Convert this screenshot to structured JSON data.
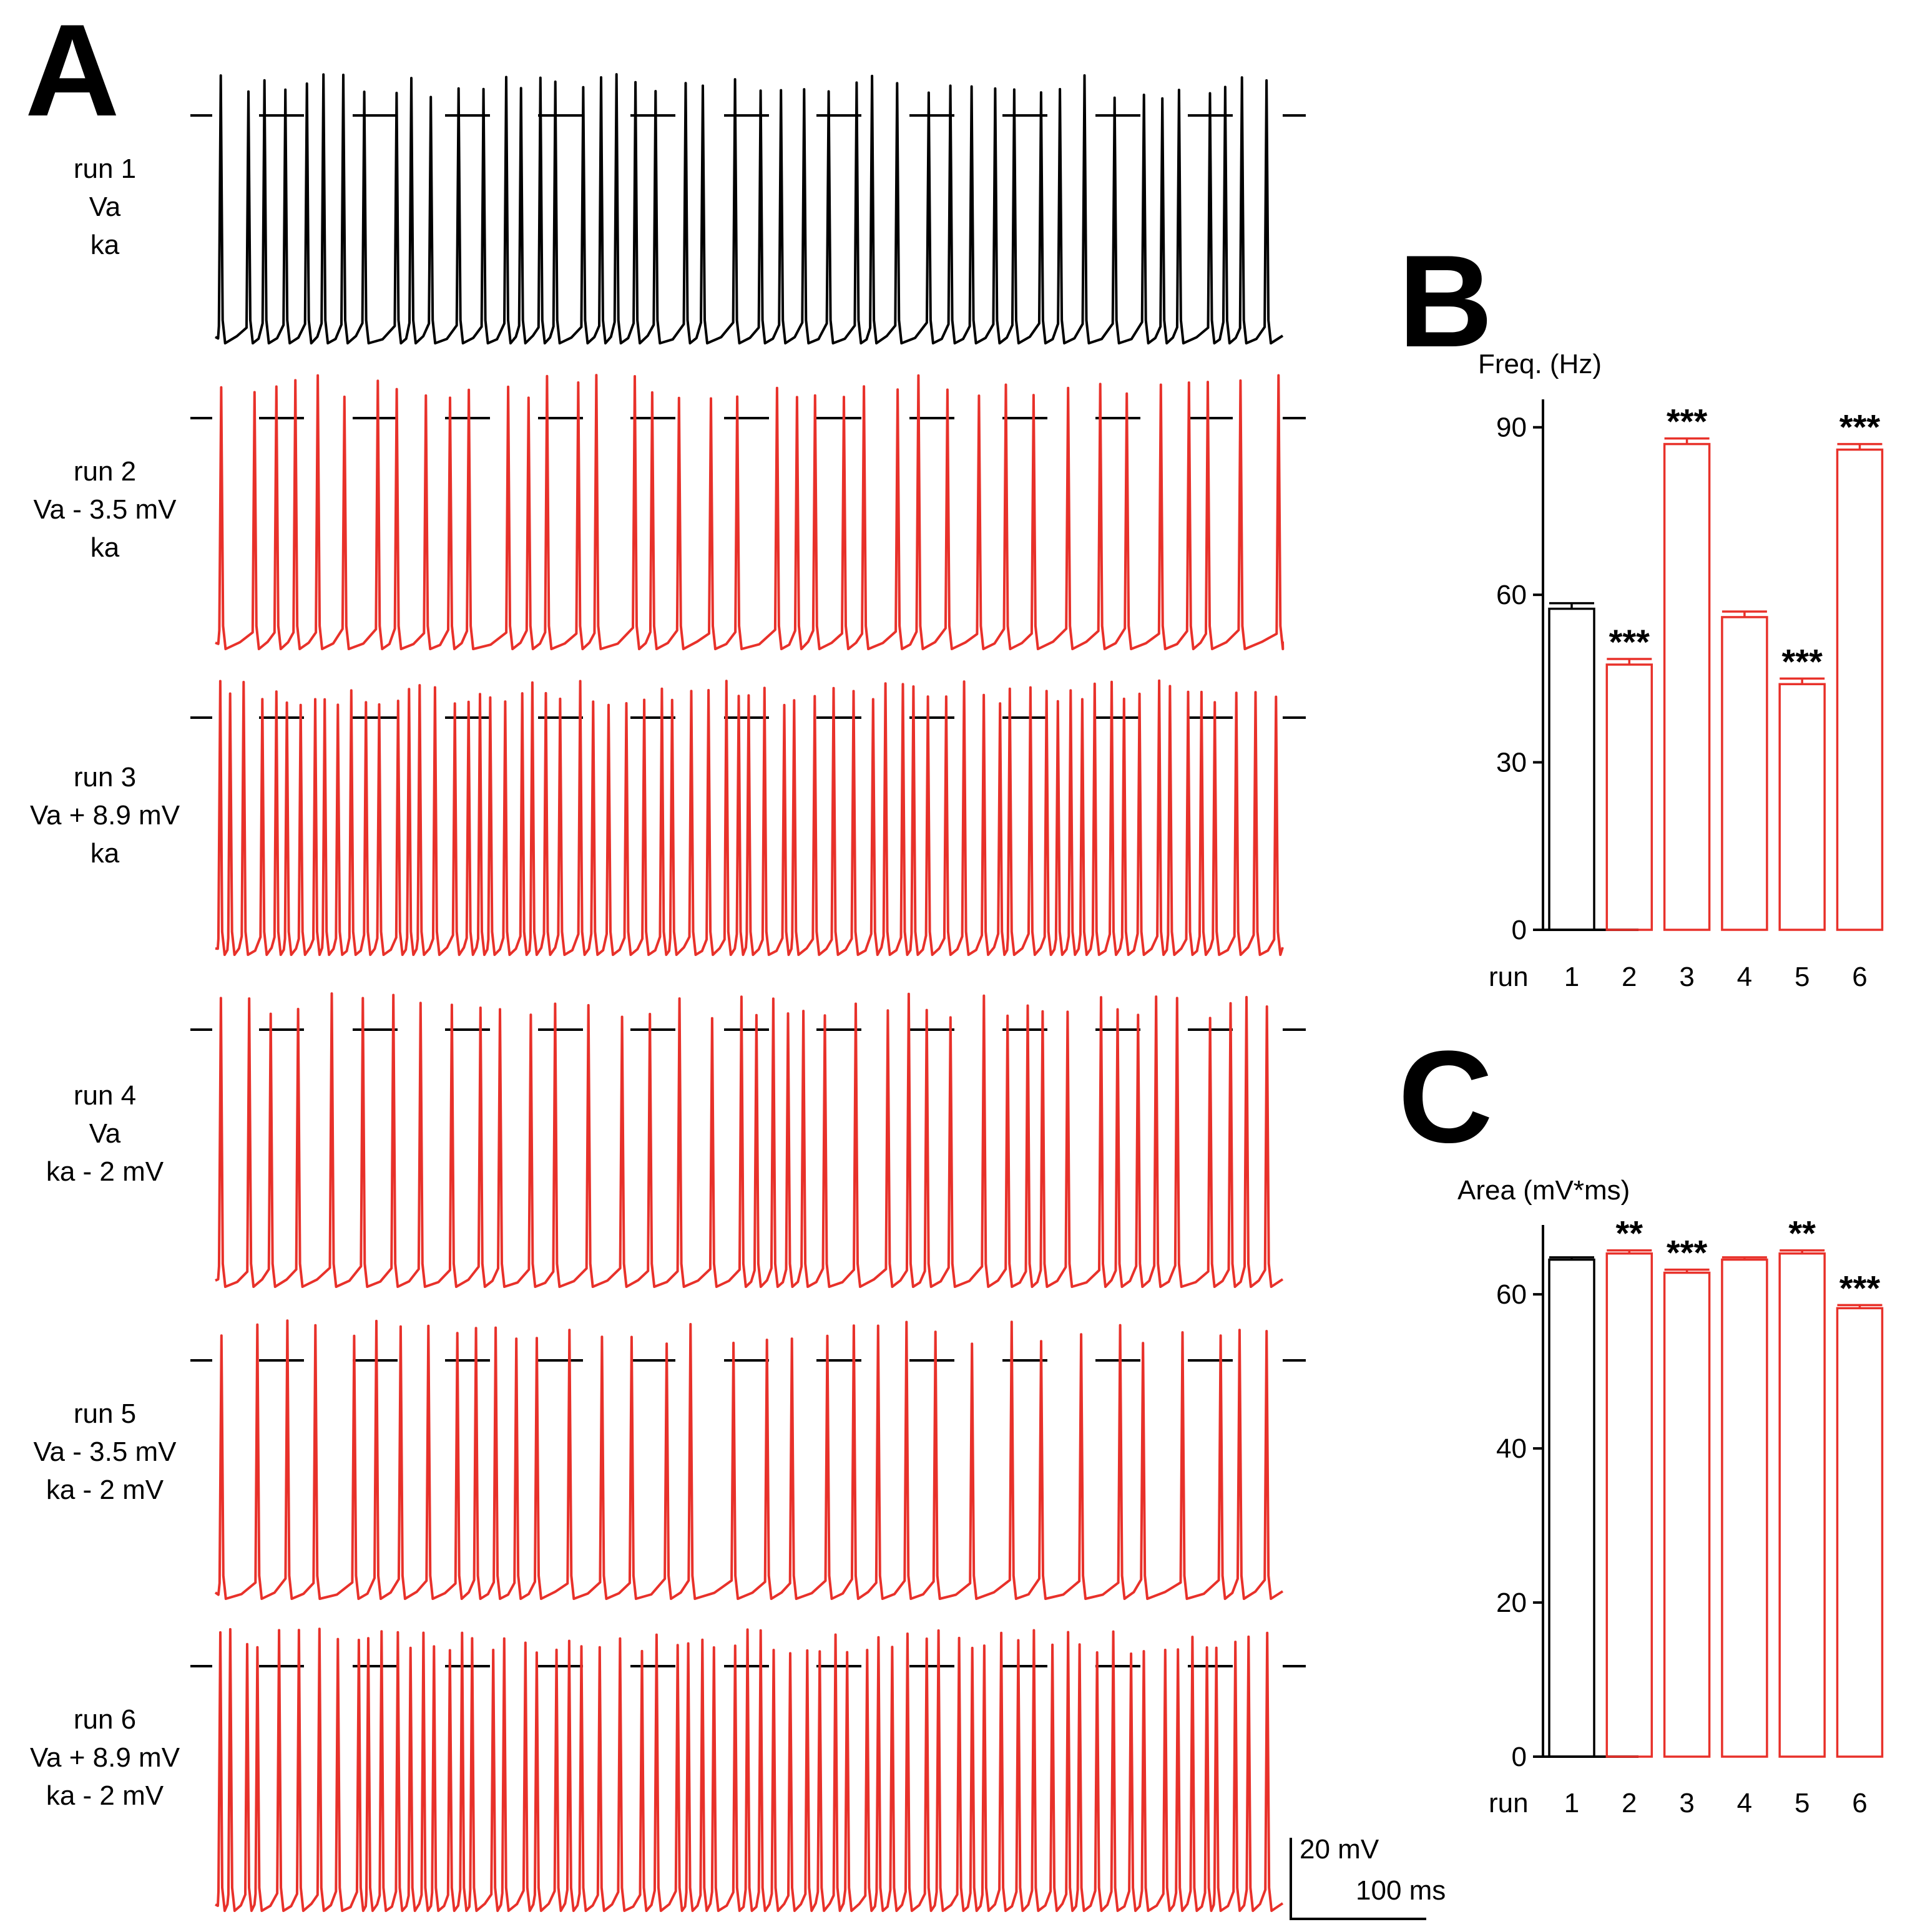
{
  "colors": {
    "control": "#000000",
    "test": "#e8312a",
    "hold_line": "#000000"
  },
  "panel_letters": {
    "a": "A",
    "b": "B",
    "c": "C"
  },
  "traces": {
    "label_hint": "Membrane potential traces, 6 simulation runs (panel A)",
    "runs": [
      {
        "run": 1,
        "lines": [
          "run 1",
          "Va",
          "ka"
        ],
        "color": "control",
        "rate_hz": 57.5,
        "seed": 11
      },
      {
        "run": 2,
        "lines": [
          "run 2",
          "Va - 3.5 mV",
          "ka"
        ],
        "color": "test",
        "rate_hz": 47.5,
        "seed": 23
      },
      {
        "run": 3,
        "lines": [
          "run 3",
          "Va  + 8.9 mV",
          "ka"
        ],
        "color": "test",
        "rate_hz": 87.0,
        "seed": 37
      },
      {
        "run": 4,
        "lines": [
          "run 4",
          "Va",
          "ka - 2 mV"
        ],
        "color": "test",
        "rate_hz": 56.0,
        "seed": 41
      },
      {
        "run": 5,
        "lines": [
          "run 5",
          "Va - 3.5 mV",
          "ka - 2 mV"
        ],
        "color": "test",
        "rate_hz": 44.0,
        "seed": 53
      },
      {
        "run": 6,
        "lines": [
          "run 6",
          "Va + 8.9 mV",
          "ka - 2 mV"
        ],
        "color": "test",
        "rate_hz": 86.0,
        "seed": 67
      }
    ]
  },
  "scalebar": {
    "voltage_label": "20 mV",
    "time_label": "100 ms"
  },
  "chart_data": [
    {
      "type": "bar",
      "panel": "B",
      "title": "",
      "ylabel": "Freq. (Hz)",
      "xlabel": "run",
      "categories": [
        "1",
        "2",
        "3",
        "4",
        "5",
        "6"
      ],
      "series": [
        {
          "name": "Freq. (Hz)",
          "values": [
            57.5,
            47.5,
            87.0,
            56.0,
            44.0,
            86.0
          ]
        }
      ],
      "errors": [
        1.0,
        1.0,
        1.0,
        1.0,
        1.0,
        1.0
      ],
      "bar_colors": [
        "control",
        "test",
        "test",
        "test",
        "test",
        "test"
      ],
      "significance": [
        "",
        "***",
        "***",
        "",
        "***",
        "***"
      ],
      "yticks": [
        0,
        30,
        60,
        90
      ],
      "ylim": [
        0,
        95
      ]
    },
    {
      "type": "bar",
      "panel": "C",
      "title": "",
      "ylabel": "Area (mV*ms)",
      "xlabel": "run",
      "categories": [
        "1",
        "2",
        "3",
        "4",
        "5",
        "6"
      ],
      "series": [
        {
          "name": "Area (mV*ms)",
          "values": [
            64.5,
            65.3,
            62.8,
            64.5,
            65.3,
            58.2
          ]
        }
      ],
      "errors": [
        0.3,
        0.4,
        0.4,
        0.3,
        0.4,
        0.4
      ],
      "bar_colors": [
        "control",
        "test",
        "test",
        "test",
        "test",
        "test"
      ],
      "significance": [
        "",
        "**",
        "***",
        "",
        "**",
        "***"
      ],
      "yticks": [
        0,
        20,
        40,
        60
      ],
      "ylim": [
        0,
        69
      ]
    }
  ]
}
